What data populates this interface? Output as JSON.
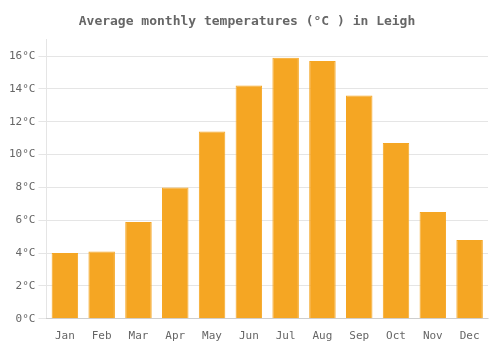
{
  "chart_data": {
    "type": "bar",
    "title": "Average monthly temperatures (°C ) in Leigh",
    "categories": [
      "Jan",
      "Feb",
      "Mar",
      "Apr",
      "May",
      "Jun",
      "Jul",
      "Aug",
      "Sep",
      "Oct",
      "Nov",
      "Dec"
    ],
    "values": [
      4.0,
      4.1,
      5.9,
      8.0,
      11.4,
      14.2,
      15.9,
      15.7,
      13.6,
      10.7,
      6.5,
      4.8
    ],
    "color": "#F5A623",
    "ylim": [
      0,
      17
    ],
    "yticks": [
      {
        "value": 0,
        "label": "0°C"
      },
      {
        "value": 2,
        "label": "2°C"
      },
      {
        "value": 4,
        "label": "4°C"
      },
      {
        "value": 6,
        "label": "6°C"
      },
      {
        "value": 8,
        "label": "8°C"
      },
      {
        "value": 10,
        "label": "10°C"
      },
      {
        "value": 12,
        "label": "12°C"
      },
      {
        "value": 14,
        "label": "14°C"
      },
      {
        "value": 16,
        "label": "16°C"
      }
    ],
    "grid": true
  }
}
